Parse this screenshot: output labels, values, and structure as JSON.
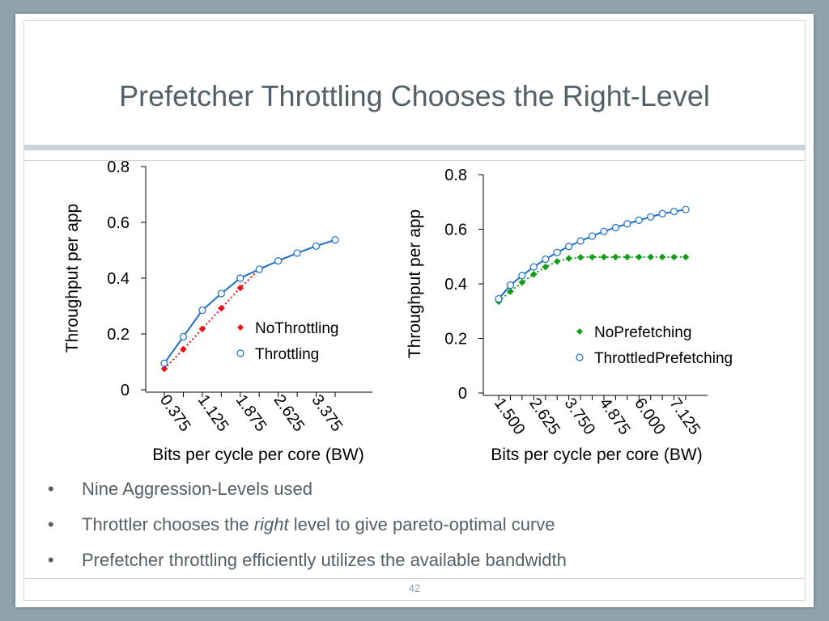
{
  "slide": {
    "title": "Prefetcher Throttling Chooses the Right-Level",
    "page_number": "42",
    "bullets": [
      {
        "parts": [
          {
            "text": "Nine Aggression-Levels used",
            "italic": false
          }
        ]
      },
      {
        "parts": [
          {
            "text": "Throttler chooses the ",
            "italic": false
          },
          {
            "text": "right",
            "italic": true
          },
          {
            "text": " level to give pareto-optimal curve",
            "italic": false
          }
        ]
      },
      {
        "parts": [
          {
            "text": "Prefetcher throttling efficiently utilizes the available bandwidth",
            "italic": false
          }
        ]
      }
    ]
  },
  "chart_data": [
    {
      "type": "line",
      "xlabel": "Bits per cycle per core (BW)",
      "ylabel": "Throughput per app",
      "ylim": [
        0,
        0.8
      ],
      "yticks": [
        "0",
        "0.2",
        "0.4",
        "0.6",
        "0.8"
      ],
      "x": [
        0.375,
        0.75,
        1.125,
        1.5,
        1.875,
        2.25,
        2.625,
        3.0,
        3.375,
        3.75
      ],
      "xtick_labels": [
        "0.375",
        "1.125",
        "1.875",
        "2.625",
        "3.375"
      ],
      "legend_position": "center-right",
      "series": [
        {
          "name": "NoThrottling",
          "color": "#e8131c",
          "marker": "diamond",
          "line": "dotted",
          "values": [
            0.075,
            0.145,
            0.218,
            0.292,
            0.365,
            0.432,
            0.462,
            0.49,
            0.515,
            0.537
          ]
        },
        {
          "name": "Throttling",
          "color": "#1c6fc6",
          "marker": "circle",
          "line": "solid",
          "values": [
            0.095,
            0.19,
            0.285,
            0.345,
            0.4,
            0.432,
            0.462,
            0.49,
            0.515,
            0.537
          ]
        }
      ]
    },
    {
      "type": "line",
      "xlabel": "Bits per cycle per core (BW)",
      "ylabel": "Throughput per app",
      "ylim": [
        0,
        0.8
      ],
      "yticks": [
        "0",
        "0.2",
        "0.4",
        "0.6",
        "0.8"
      ],
      "x": [
        1.5,
        1.875,
        2.25,
        2.625,
        3.0,
        3.375,
        3.75,
        4.125,
        4.5,
        4.875,
        5.25,
        5.625,
        6.0,
        6.375,
        6.75,
        7.125,
        7.5
      ],
      "xtick_labels": [
        "1.500",
        "2.625",
        "3.750",
        "4.875",
        "6.000",
        "7.125"
      ],
      "legend_position": "center-right",
      "series": [
        {
          "name": "NoPrefetching",
          "color": "#139e1a",
          "marker": "diamond",
          "line": "dotted",
          "values": [
            0.335,
            0.372,
            0.405,
            0.435,
            0.462,
            0.482,
            0.493,
            0.497,
            0.498,
            0.498,
            0.498,
            0.498,
            0.498,
            0.498,
            0.498,
            0.498,
            0.498
          ]
        },
        {
          "name": "ThrottledPrefetching",
          "color": "#1c6fc6",
          "marker": "circle",
          "line": "solid",
          "values": [
            0.345,
            0.395,
            0.43,
            0.462,
            0.49,
            0.515,
            0.537,
            0.557,
            0.575,
            0.592,
            0.606,
            0.62,
            0.633,
            0.645,
            0.657,
            0.665,
            0.672
          ]
        }
      ]
    }
  ]
}
